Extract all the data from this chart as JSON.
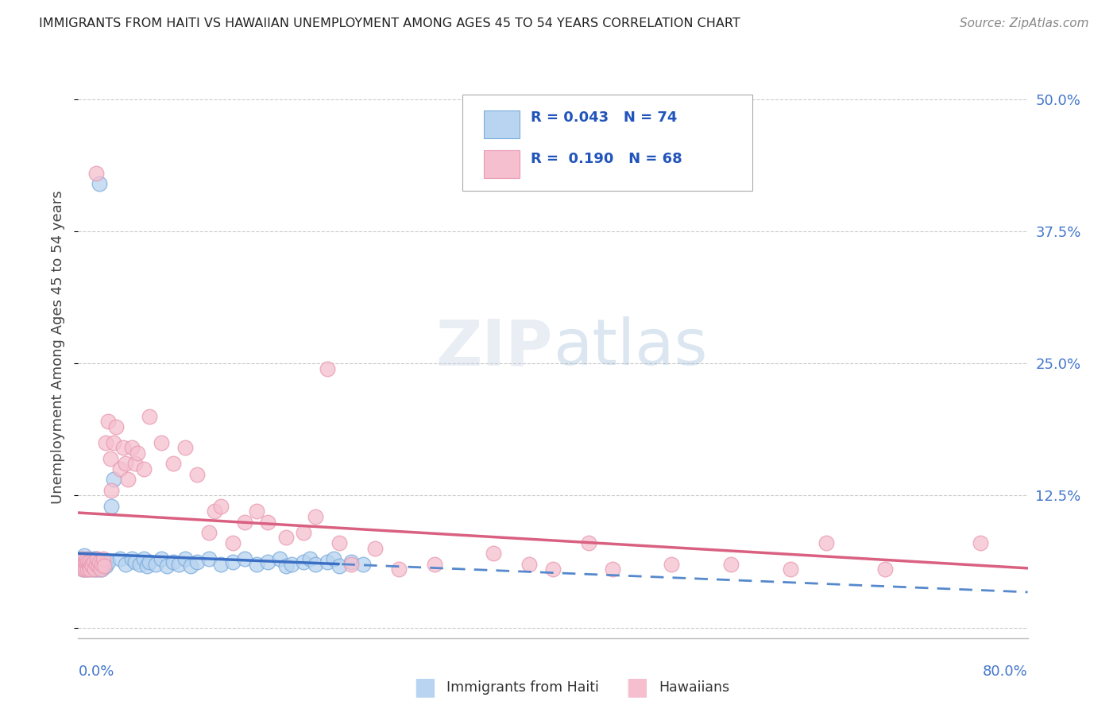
{
  "title": "IMMIGRANTS FROM HAITI VS HAWAIIAN UNEMPLOYMENT AMONG AGES 45 TO 54 YEARS CORRELATION CHART",
  "source": "Source: ZipAtlas.com",
  "ylabel": "Unemployment Among Ages 45 to 54 years",
  "xlim": [
    0.0,
    0.8
  ],
  "ylim": [
    -0.01,
    0.54
  ],
  "ytick_vals": [
    0.0,
    0.125,
    0.25,
    0.375,
    0.5
  ],
  "ytick_labels": [
    "",
    "12.5%",
    "25.0%",
    "37.5%",
    "50.0%"
  ],
  "haiti_pts": [
    [
      0.002,
      0.06
    ],
    [
      0.003,
      0.058
    ],
    [
      0.003,
      0.065
    ],
    [
      0.004,
      0.055
    ],
    [
      0.004,
      0.062
    ],
    [
      0.005,
      0.06
    ],
    [
      0.005,
      0.068
    ],
    [
      0.006,
      0.055
    ],
    [
      0.006,
      0.063
    ],
    [
      0.007,
      0.06
    ],
    [
      0.007,
      0.058
    ],
    [
      0.008,
      0.062
    ],
    [
      0.008,
      0.055
    ],
    [
      0.009,
      0.06
    ],
    [
      0.009,
      0.065
    ],
    [
      0.01,
      0.058
    ],
    [
      0.01,
      0.062
    ],
    [
      0.011,
      0.06
    ],
    [
      0.011,
      0.055
    ],
    [
      0.012,
      0.062
    ],
    [
      0.012,
      0.058
    ],
    [
      0.013,
      0.06
    ],
    [
      0.013,
      0.065
    ],
    [
      0.014,
      0.058
    ],
    [
      0.014,
      0.055
    ],
    [
      0.015,
      0.06
    ],
    [
      0.015,
      0.065
    ],
    [
      0.016,
      0.055
    ],
    [
      0.016,
      0.062
    ],
    [
      0.017,
      0.058
    ],
    [
      0.017,
      0.06
    ],
    [
      0.018,
      0.062
    ],
    [
      0.018,
      0.055
    ],
    [
      0.019,
      0.06
    ],
    [
      0.02,
      0.055
    ],
    [
      0.021,
      0.062
    ],
    [
      0.022,
      0.06
    ],
    [
      0.023,
      0.058
    ],
    [
      0.025,
      0.062
    ],
    [
      0.018,
      0.42
    ],
    [
      0.03,
      0.14
    ],
    [
      0.028,
      0.115
    ],
    [
      0.035,
      0.065
    ],
    [
      0.04,
      0.06
    ],
    [
      0.045,
      0.065
    ],
    [
      0.048,
      0.062
    ],
    [
      0.052,
      0.06
    ],
    [
      0.055,
      0.065
    ],
    [
      0.058,
      0.058
    ],
    [
      0.06,
      0.062
    ],
    [
      0.065,
      0.06
    ],
    [
      0.07,
      0.065
    ],
    [
      0.075,
      0.058
    ],
    [
      0.08,
      0.062
    ],
    [
      0.085,
      0.06
    ],
    [
      0.09,
      0.065
    ],
    [
      0.095,
      0.058
    ],
    [
      0.1,
      0.062
    ],
    [
      0.11,
      0.065
    ],
    [
      0.12,
      0.06
    ],
    [
      0.13,
      0.062
    ],
    [
      0.14,
      0.065
    ],
    [
      0.15,
      0.06
    ],
    [
      0.16,
      0.062
    ],
    [
      0.17,
      0.065
    ],
    [
      0.175,
      0.058
    ],
    [
      0.18,
      0.06
    ],
    [
      0.19,
      0.062
    ],
    [
      0.195,
      0.065
    ],
    [
      0.2,
      0.06
    ],
    [
      0.21,
      0.062
    ],
    [
      0.215,
      0.065
    ],
    [
      0.22,
      0.058
    ],
    [
      0.23,
      0.062
    ],
    [
      0.24,
      0.06
    ]
  ],
  "hawaiian_pts": [
    [
      0.002,
      0.058
    ],
    [
      0.003,
      0.062
    ],
    [
      0.004,
      0.055
    ],
    [
      0.004,
      0.065
    ],
    [
      0.005,
      0.06
    ],
    [
      0.005,
      0.058
    ],
    [
      0.006,
      0.062
    ],
    [
      0.006,
      0.055
    ],
    [
      0.007,
      0.06
    ],
    [
      0.007,
      0.065
    ],
    [
      0.008,
      0.055
    ],
    [
      0.008,
      0.062
    ],
    [
      0.009,
      0.058
    ],
    [
      0.009,
      0.06
    ],
    [
      0.01,
      0.062
    ],
    [
      0.01,
      0.055
    ],
    [
      0.011,
      0.06
    ],
    [
      0.012,
      0.058
    ],
    [
      0.013,
      0.062
    ],
    [
      0.014,
      0.055
    ],
    [
      0.015,
      0.06
    ],
    [
      0.016,
      0.065
    ],
    [
      0.017,
      0.058
    ],
    [
      0.018,
      0.062
    ],
    [
      0.019,
      0.055
    ],
    [
      0.02,
      0.06
    ],
    [
      0.021,
      0.065
    ],
    [
      0.022,
      0.058
    ],
    [
      0.023,
      0.175
    ],
    [
      0.025,
      0.195
    ],
    [
      0.027,
      0.16
    ],
    [
      0.028,
      0.13
    ],
    [
      0.03,
      0.175
    ],
    [
      0.032,
      0.19
    ],
    [
      0.035,
      0.15
    ],
    [
      0.038,
      0.17
    ],
    [
      0.04,
      0.155
    ],
    [
      0.042,
      0.14
    ],
    [
      0.045,
      0.17
    ],
    [
      0.048,
      0.155
    ],
    [
      0.05,
      0.165
    ],
    [
      0.055,
      0.15
    ],
    [
      0.015,
      0.43
    ],
    [
      0.06,
      0.2
    ],
    [
      0.07,
      0.175
    ],
    [
      0.08,
      0.155
    ],
    [
      0.09,
      0.17
    ],
    [
      0.1,
      0.145
    ],
    [
      0.11,
      0.09
    ],
    [
      0.115,
      0.11
    ],
    [
      0.12,
      0.115
    ],
    [
      0.13,
      0.08
    ],
    [
      0.14,
      0.1
    ],
    [
      0.15,
      0.11
    ],
    [
      0.16,
      0.1
    ],
    [
      0.175,
      0.085
    ],
    [
      0.19,
      0.09
    ],
    [
      0.2,
      0.105
    ],
    [
      0.21,
      0.245
    ],
    [
      0.22,
      0.08
    ],
    [
      0.23,
      0.06
    ],
    [
      0.25,
      0.075
    ],
    [
      0.27,
      0.055
    ],
    [
      0.3,
      0.06
    ],
    [
      0.35,
      0.07
    ],
    [
      0.38,
      0.06
    ],
    [
      0.4,
      0.055
    ],
    [
      0.43,
      0.08
    ],
    [
      0.45,
      0.055
    ],
    [
      0.5,
      0.06
    ],
    [
      0.55,
      0.06
    ],
    [
      0.6,
      0.055
    ],
    [
      0.63,
      0.08
    ],
    [
      0.68,
      0.055
    ],
    [
      0.76,
      0.08
    ]
  ]
}
